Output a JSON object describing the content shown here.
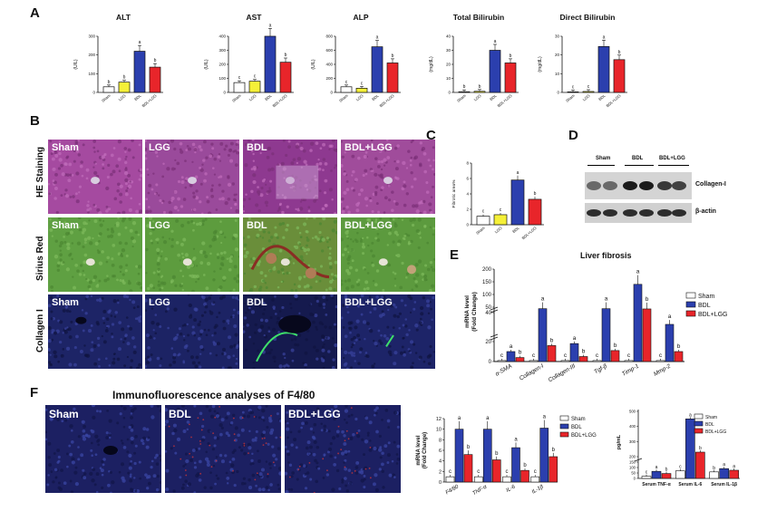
{
  "colors": {
    "sham": "#ffffff",
    "lgg": "#f5f038",
    "bdl": "#2b3fae",
    "bdllgg": "#e8252a"
  },
  "panels": {
    "a": "A",
    "b": "B",
    "c": "C",
    "d": "D",
    "e": "E",
    "f": "F"
  },
  "panelA": [
    {
      "title": "ALT",
      "ylabel": "(U/L)",
      "yticks": [
        "0",
        "100",
        "200",
        "300"
      ],
      "ymax": 300,
      "values": [
        30,
        55,
        220,
        135
      ],
      "letters": [
        "b",
        "b",
        "a",
        "b"
      ],
      "cats": [
        "Sham",
        "LGG",
        "BDL",
        "BDL+LGG"
      ]
    },
    {
      "title": "AST",
      "ylabel": "(U/L)",
      "yticks": [
        "0",
        "100",
        "200",
        "300",
        "400"
      ],
      "ymax": 400,
      "values": [
        70,
        80,
        400,
        215
      ],
      "letters": [
        "c",
        "c",
        "a",
        "b"
      ],
      "cats": [
        "Sham",
        "LGG",
        "BDL",
        "BDL+LGG"
      ]
    },
    {
      "title": "ALP",
      "ylabel": "(U/L)",
      "yticks": [
        "0",
        "200",
        "400",
        "600",
        "800"
      ],
      "ymax": 800,
      "values": [
        80,
        60,
        650,
        420
      ],
      "letters": [
        "c",
        "c",
        "a",
        "b"
      ],
      "cats": [
        "Sham",
        "LGG",
        "BDL",
        "BDL+LGG"
      ]
    },
    {
      "title": "Total  Bilirubin",
      "ylabel": "(mg/dL)",
      "yticks": [
        "0",
        "10",
        "20",
        "30",
        "40"
      ],
      "ymax": 40,
      "values": [
        0.5,
        0.8,
        30,
        21
      ],
      "letters": [
        "b",
        "b",
        "a",
        "b"
      ],
      "cats": [
        "Sham",
        "LGG",
        "BDL",
        "BDL+LGG"
      ]
    },
    {
      "title": "Direct Bilirubin",
      "ylabel": "(mg/dL)",
      "yticks": [
        "0",
        "10",
        "20",
        "30"
      ],
      "ymax": 30,
      "values": [
        0.3,
        0.5,
        24.5,
        17.5
      ],
      "letters": [
        "c",
        "c",
        "a",
        "b"
      ],
      "cats": [
        "Sham",
        "LGG",
        "BDL",
        "BDL+LGG"
      ]
    }
  ],
  "panelB": {
    "columns": [
      "Sham",
      "LGG",
      "BDL",
      "BDL+LGG"
    ],
    "rows": [
      "HE Staining",
      "Sirius Red",
      "Collagen I"
    ]
  },
  "panelC": {
    "ylabel": "Fibrotic area%",
    "yticks": [
      "0",
      "2",
      "4",
      "6",
      "8"
    ],
    "ymax": 8,
    "values": [
      1.1,
      1.3,
      5.8,
      3.3
    ],
    "letters": [
      "c",
      "c",
      "a",
      "b"
    ],
    "cats": [
      "Sham",
      "LGG",
      "BDL",
      "BDL+LGG"
    ]
  },
  "panelD": {
    "groups": [
      "Sham",
      "BDL",
      "BDL+LGG"
    ],
    "bands": [
      "Collagen-I",
      "β-actin"
    ]
  },
  "panelE": {
    "title": "Liver fibrosis",
    "ylabel1": "mRNA level",
    "ylabel2": "(Fold Change)",
    "yticks": [
      "0",
      "20",
      "40",
      "50",
      "100",
      "150",
      "200"
    ],
    "legend": [
      "Sham",
      "BDL",
      "BDL+LGG"
    ],
    "genes": [
      "α-SMA",
      "Collagen-I",
      "Collagen-III",
      "Tgf-β",
      "Timp-1",
      "Mmp-2"
    ],
    "series": [
      {
        "name": "Sham",
        "values": [
          1,
          1,
          1,
          1,
          1,
          1
        ]
      },
      {
        "name": "BDL",
        "values": [
          10,
          44,
          18,
          44,
          140,
          30
        ]
      },
      {
        "name": "BDL+LGG",
        "values": [
          4,
          16,
          5,
          11,
          43,
          10
        ]
      }
    ],
    "letters": [
      [
        "c",
        "a",
        "b"
      ],
      [
        "c",
        "a",
        "b"
      ],
      [
        "c",
        "a",
        "b"
      ],
      [
        "c",
        "a",
        "b"
      ],
      [
        "c",
        "a",
        "b"
      ],
      [
        "c",
        "a",
        "b"
      ]
    ]
  },
  "panelF": {
    "title": "Immunofluorescence analyses of F4/80",
    "images": [
      "Sham",
      "BDL",
      "BDL+LGG"
    ],
    "chart1": {
      "ylabel1": "mRNA level",
      "ylabel2": "(Fold Change)",
      "yticks": [
        "0",
        "2",
        "4",
        "6",
        "8",
        "10",
        "12"
      ],
      "ymax": 12,
      "genes": [
        "F4/80",
        "TNF-α",
        "IL-6",
        "IL-1β"
      ],
      "series": [
        {
          "name": "Sham",
          "values": [
            1,
            1,
            1,
            1
          ]
        },
        {
          "name": "BDL",
          "values": [
            10,
            10,
            6.5,
            10.2
          ]
        },
        {
          "name": "BDL+LGG",
          "values": [
            5.2,
            4.2,
            2.2,
            4.8
          ]
        }
      ],
      "letters": [
        [
          "c",
          "a",
          "b"
        ],
        [
          "c",
          "a",
          "b"
        ],
        [
          "c",
          "a",
          "b"
        ],
        [
          "c",
          "a",
          "b"
        ]
      ],
      "legend": [
        "Sham",
        "BDL",
        "BDL+LGG"
      ]
    },
    "chart2": {
      "ylabel": "pg/mL",
      "yticks": [
        "0",
        "50",
        "100",
        "150",
        "200",
        "300",
        "400",
        "500"
      ],
      "cats": [
        "Serum TNF-α",
        "Serum IL-6",
        "Serum IL-1β"
      ],
      "series": [
        {
          "name": "Sham",
          "values": [
            20,
            70,
            60
          ]
        },
        {
          "name": "BDL",
          "values": [
            65,
            450,
            90
          ]
        },
        {
          "name": "BDL+LGG",
          "values": [
            45,
            230,
            75
          ]
        }
      ],
      "letters": [
        [
          "c",
          "a",
          "b"
        ],
        [
          "c",
          "a",
          "b"
        ],
        [
          "b",
          "a",
          "a"
        ]
      ],
      "legend": [
        "Sham",
        "BDL",
        "BDL+LGG"
      ]
    }
  }
}
